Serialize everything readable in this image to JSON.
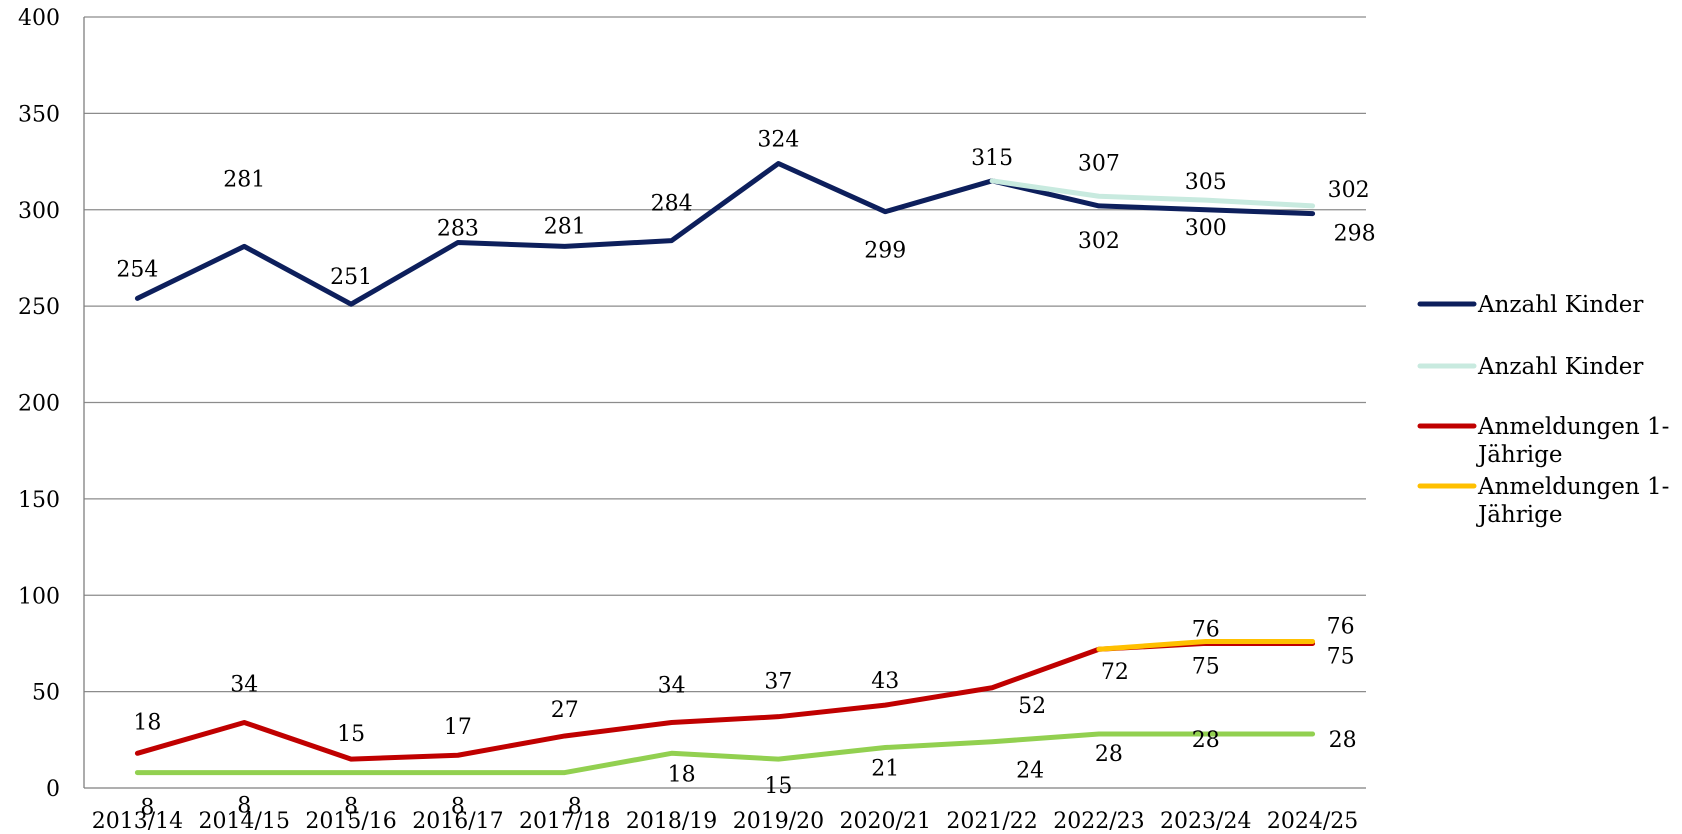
{
  "chart_data": {
    "type": "line",
    "title": "",
    "xlabel": "",
    "ylabel": "",
    "ylim": [
      0,
      400
    ],
    "yticks": [
      "0",
      "50",
      "100",
      "150",
      "200",
      "250",
      "300",
      "350",
      "400"
    ],
    "grid": true,
    "legend_position": "right",
    "categories": [
      "2013/14",
      "2014/15",
      "2015/16",
      "2016/17",
      "2017/18",
      "2018/19",
      "2019/20",
      "2020/21",
      "2021/22",
      "2022/23",
      "2023/24",
      "2024/25"
    ],
    "series": [
      {
        "name": "Anzahl Kinder",
        "color": "#0d1f5c",
        "values": [
          254,
          281,
          251,
          283,
          281,
          284,
          324,
          299,
          315,
          302,
          300,
          298
        ]
      },
      {
        "name": "Anzahl Kinder",
        "color": "#c8eadf",
        "values": [
          null,
          null,
          null,
          null,
          null,
          null,
          null,
          null,
          315,
          307,
          305,
          302
        ]
      },
      {
        "name": "Anmeldungen 1-Jährige",
        "color": "#c00000",
        "values": [
          18,
          34,
          15,
          17,
          27,
          34,
          37,
          43,
          52,
          72,
          75,
          75
        ]
      },
      {
        "name": "Anmeldungen 1-Jährige",
        "color": "#ffc000",
        "values": [
          null,
          null,
          null,
          null,
          null,
          null,
          null,
          null,
          null,
          72,
          76,
          76
        ]
      },
      {
        "name": "",
        "color": "#92d050",
        "values": [
          8,
          8,
          8,
          8,
          8,
          18,
          15,
          21,
          24,
          28,
          28,
          28
        ]
      }
    ],
    "legend": [
      {
        "label": "Anzahl Kinder",
        "color": "#0d1f5c"
      },
      {
        "label": "Anzahl Kinder",
        "color": "#c8eadf"
      },
      {
        "label": "Anmeldungen 1-Jährige",
        "color": "#c00000"
      },
      {
        "label": "Anmeldungen 1-Jährige",
        "color": "#ffc000"
      }
    ]
  }
}
